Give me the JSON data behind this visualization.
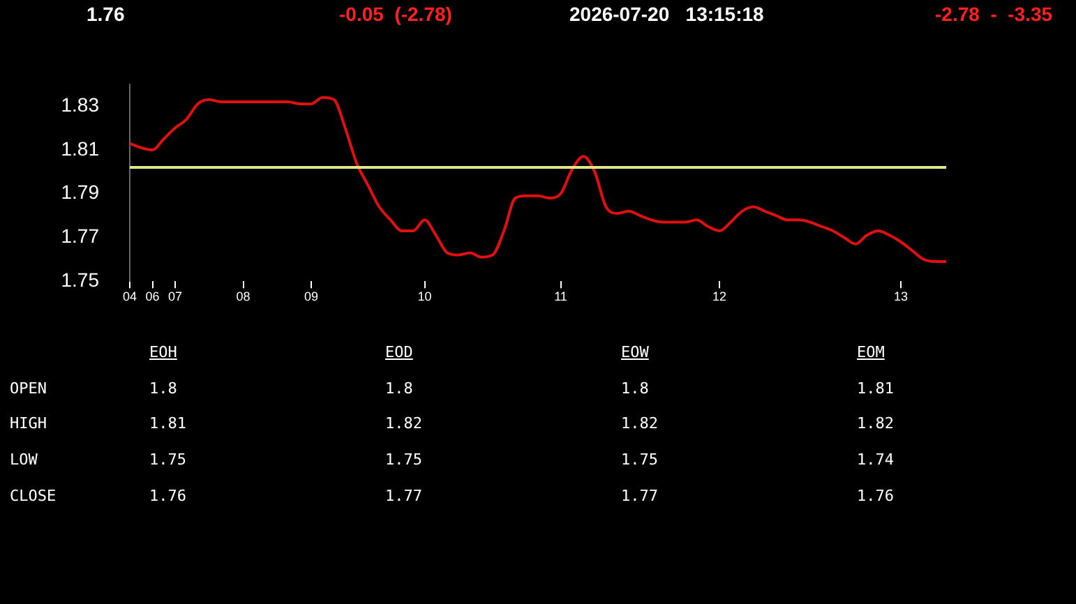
{
  "chart_data": [
    {
      "type": "line",
      "annotations": [
        "1.76",
        "-0.05  (-2.78)",
        "2026-07-20   13:15:18",
        "-2.78  -  -3.35"
      ],
      "categories": [
        "04",
        null,
        "06",
        null,
        "07",
        null,
        null,
        null,
        null,
        null,
        "08",
        null,
        null,
        null,
        null,
        null,
        "09",
        null,
        null,
        null,
        null,
        null,
        null,
        null,
        null,
        null,
        "10",
        null,
        null,
        null,
        null,
        null,
        null,
        null,
        null,
        null,
        null,
        null,
        "11",
        null,
        null,
        null,
        null,
        null,
        null,
        null,
        null,
        null,
        null,
        null,
        null,
        null,
        "12",
        null,
        null,
        null,
        null,
        null,
        null,
        null,
        null,
        null,
        null,
        null,
        null,
        null,
        null,
        null,
        "13",
        null,
        null,
        null,
        null
      ],
      "series": [
        {
          "color": "#e01010",
          "values": [
            1.813,
            1.811,
            1.81,
            1.815,
            1.82,
            1.824,
            1.831,
            1.833,
            1.832,
            1.832,
            1.832,
            1.832,
            1.832,
            1.832,
            1.832,
            1.831,
            1.831,
            1.834,
            1.833,
            1.82,
            1.804,
            1.794,
            1.784,
            1.778,
            1.773,
            1.773,
            1.778,
            1.771,
            1.763,
            1.762,
            1.763,
            1.761,
            1.762,
            1.773,
            1.788,
            1.789,
            1.789,
            1.788,
            1.79,
            1.801,
            1.807,
            1.8,
            1.784,
            1.781,
            1.782,
            1.78,
            1.778,
            1.777,
            1.777,
            1.777,
            1.778,
            1.775,
            1.773,
            1.777,
            1.782,
            1.784,
            1.782,
            1.78,
            1.778,
            1.778,
            1.777,
            1.775,
            1.773,
            1.77,
            1.767,
            1.771,
            1.773,
            1.771,
            1.768,
            1.764,
            1.76,
            1.759,
            1.759
          ]
        }
      ],
      "ylim": [
        1.75,
        1.84
      ],
      "yticks": [
        1.75,
        1.77,
        1.79,
        1.81,
        1.83
      ],
      "grid": false,
      "legend": false,
      "marker": "none",
      "line_style": "solid",
      "ref_lines": [
        {
          "axis": "y",
          "value": 1.802,
          "color": "#e0e68a"
        }
      ]
    },
    {
      "type": "other",
      "categories": [
        "EOH",
        "EOD",
        "EOW",
        "EOM"
      ],
      "y_categories": [
        "OPEN",
        "HIGH",
        "LOW",
        "CLOSE"
      ],
      "cell_labels": [
        [
          "1.8",
          "1.8",
          "1.8",
          "1.81"
        ],
        [
          "1.81",
          "1.82",
          "1.82",
          "1.82"
        ],
        [
          "1.75",
          "1.75",
          "1.75",
          "1.74"
        ],
        [
          "1.76",
          "1.77",
          "1.77",
          "1.76"
        ]
      ]
    }
  ]
}
